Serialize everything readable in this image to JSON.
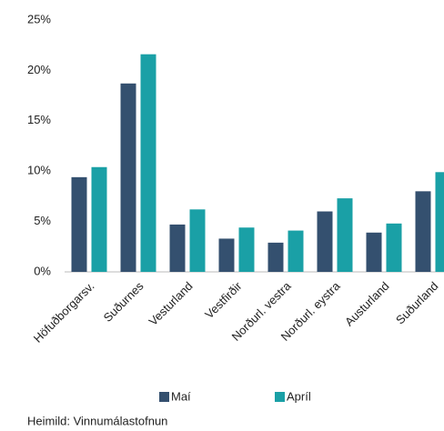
{
  "chart_data": {
    "type": "bar",
    "categories": [
      "Höfuðborgarsv.",
      "Suðurnes",
      "Vesturland",
      "Vestfirðir",
      "Norðurl. vestra",
      "Norðurl. eystra",
      "Austurland",
      "Suðurland"
    ],
    "series": [
      {
        "name": "Maí",
        "color": "#34506f",
        "values": [
          9.4,
          18.7,
          4.7,
          3.3,
          2.9,
          6.0,
          3.9,
          8.0
        ]
      },
      {
        "name": "Apríl",
        "color": "#1aa0a6",
        "values": [
          10.4,
          21.6,
          6.2,
          4.4,
          4.1,
          7.3,
          4.8,
          9.9
        ]
      }
    ],
    "ylim": [
      0,
      25
    ],
    "yticks": [
      {
        "value": 0,
        "label": "0%"
      },
      {
        "value": 5,
        "label": "5%"
      },
      {
        "value": 10,
        "label": "10%"
      },
      {
        "value": 15,
        "label": "15%"
      },
      {
        "value": 20,
        "label": "20%"
      },
      {
        "value": 25,
        "label": "25%"
      }
    ],
    "grid": false,
    "legend": "bottom",
    "source": "Heimild: Vinnumálastofnun"
  }
}
